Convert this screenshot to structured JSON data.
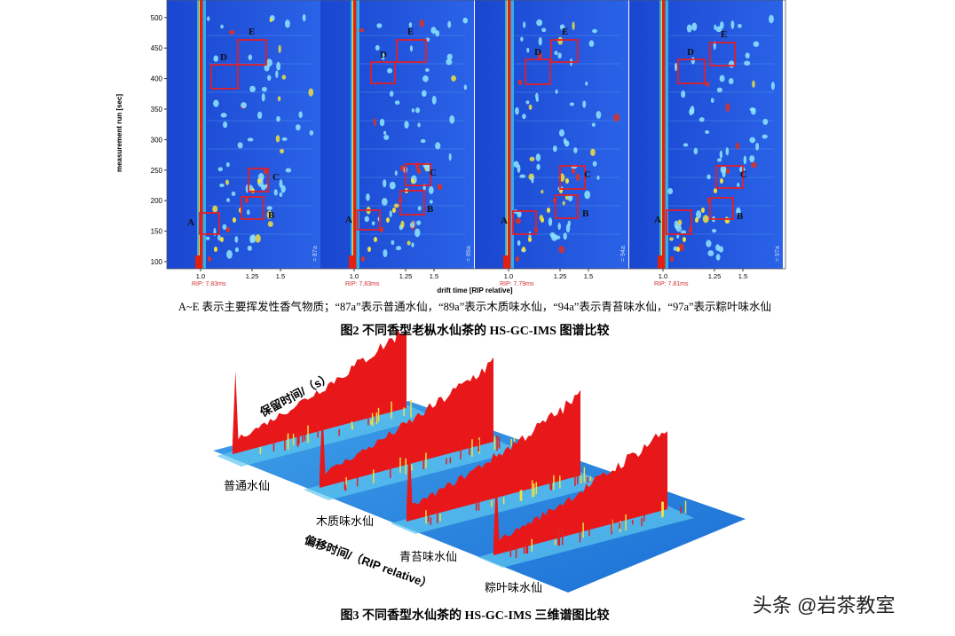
{
  "figure2": {
    "y_axis_label": "measurement run [sec]",
    "y_ticks": [
      "100",
      "150",
      "200",
      "250",
      "300",
      "350",
      "400",
      "450",
      "500"
    ],
    "x_axis_label": "drift time [RIP relative]",
    "panels": [
      {
        "sample": "= 87a",
        "rip": "RIP: 7.83ms",
        "x_ticks": [
          "1.0",
          "1.25",
          "1.5"
        ],
        "boxes": [
          "A",
          "B",
          "C",
          "D",
          "E"
        ]
      },
      {
        "sample": "= 89a",
        "rip": "RIP: 7.83ms",
        "x_ticks": [
          "1.0",
          "1.25",
          "1.5"
        ],
        "boxes": [
          "A",
          "B",
          "C",
          "D",
          "E"
        ]
      },
      {
        "sample": "= 94a",
        "rip": "RIP: 7.79ms",
        "x_ticks": [
          "1.0",
          "1.25",
          "1.5"
        ],
        "boxes": [
          "A",
          "B",
          "C",
          "D",
          "E"
        ]
      },
      {
        "sample": "= 97a",
        "rip": "RIP: 7.81ms",
        "x_ticks": [
          "1.0",
          "1.25",
          "1.5"
        ],
        "boxes": [
          "A",
          "B",
          "C",
          "D",
          "E"
        ]
      }
    ],
    "note": "A~E 表示主要挥发性香气物质；“87a”表示普通水仙，“89a”表示木质味水仙，“94a”表示青苔味水仙，“97a”表示粽叶味水仙",
    "caption": "图2  不同香型老枞水仙茶的 HS-GC-IMS 图谱比较"
  },
  "figure3": {
    "retention_axis": "保留时间/（s）",
    "drift_axis": "偏移时间/（RIP relative）",
    "samples": [
      "普通水仙",
      "木质味水仙",
      "青苔味水仙",
      "粽叶味水仙"
    ],
    "caption": "图3  不同香型水仙茶的 HS-GC-IMS 三维谱图比较"
  },
  "watermark": "头条 @岩茶教室"
}
